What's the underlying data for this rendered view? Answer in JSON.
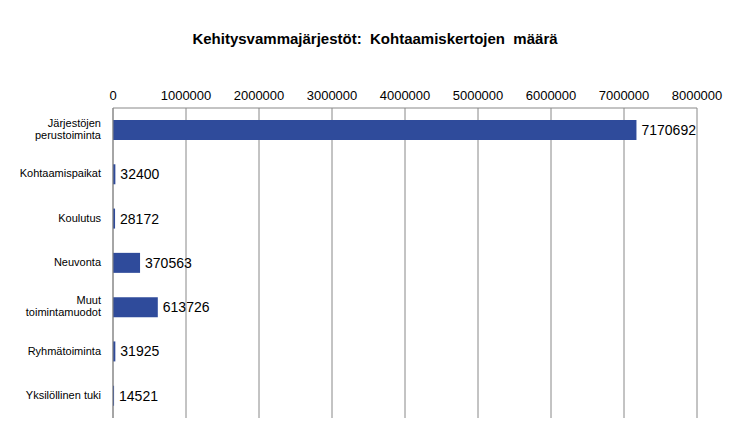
{
  "chart_data": {
    "type": "bar",
    "title": "Kehitysvammajärjestöt:  Kohtaamiskertojen  määrä",
    "orientation": "horizontal",
    "categories": [
      "Järjestöjen perustoiminta",
      "Kohtaamispaikat",
      "Koulutus",
      "Neuvonta",
      "Muut toimintamuodot",
      "Ryhmätoiminta",
      "Yksilöllinen tuki"
    ],
    "values": [
      7170692,
      32400,
      28172,
      370563,
      613726,
      31925,
      14521
    ],
    "color": "#2f4b9b",
    "xlim": [
      0,
      8000000
    ],
    "xticks": [
      0,
      1000000,
      2000000,
      3000000,
      4000000,
      5000000,
      6000000,
      7000000,
      8000000
    ],
    "grid": true,
    "data_labels": true
  }
}
